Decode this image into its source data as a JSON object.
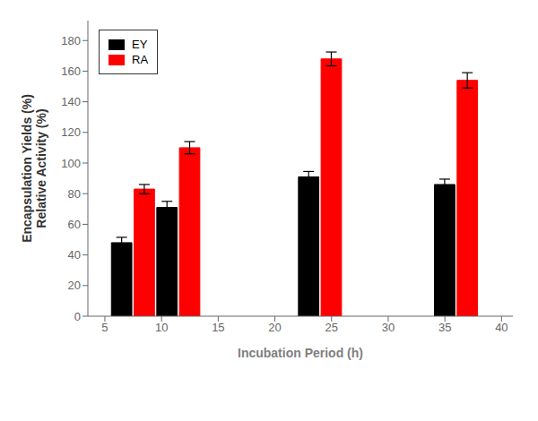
{
  "chart_data": {
    "type": "bar",
    "xlabel": "Incubation Period (h)",
    "ylabel": "Encapsulation Yields (%)\nRelative Activity (%)",
    "series": [
      {
        "name": "EY",
        "color": "#000000",
        "x": [
          6.5,
          10.5,
          23.0,
          35.0
        ],
        "values": [
          48,
          71,
          91,
          86
        ],
        "errors": [
          3.5,
          4.0,
          3.5,
          3.5
        ]
      },
      {
        "name": "RA",
        "color": "#ff0000",
        "x": [
          8.5,
          12.5,
          25.0,
          37.0
        ],
        "values": [
          83,
          110,
          168,
          154
        ],
        "errors": [
          3.0,
          4.0,
          4.5,
          5.0
        ]
      }
    ],
    "xlim": [
      3.5,
      41
    ],
    "ylim": [
      0,
      193
    ],
    "xticks": [
      5,
      10,
      15,
      20,
      25,
      30,
      35,
      40
    ],
    "yticks": [
      0,
      20,
      40,
      60,
      80,
      100,
      120,
      140,
      160,
      180
    ],
    "legend": "upper left",
    "grid": false
  }
}
